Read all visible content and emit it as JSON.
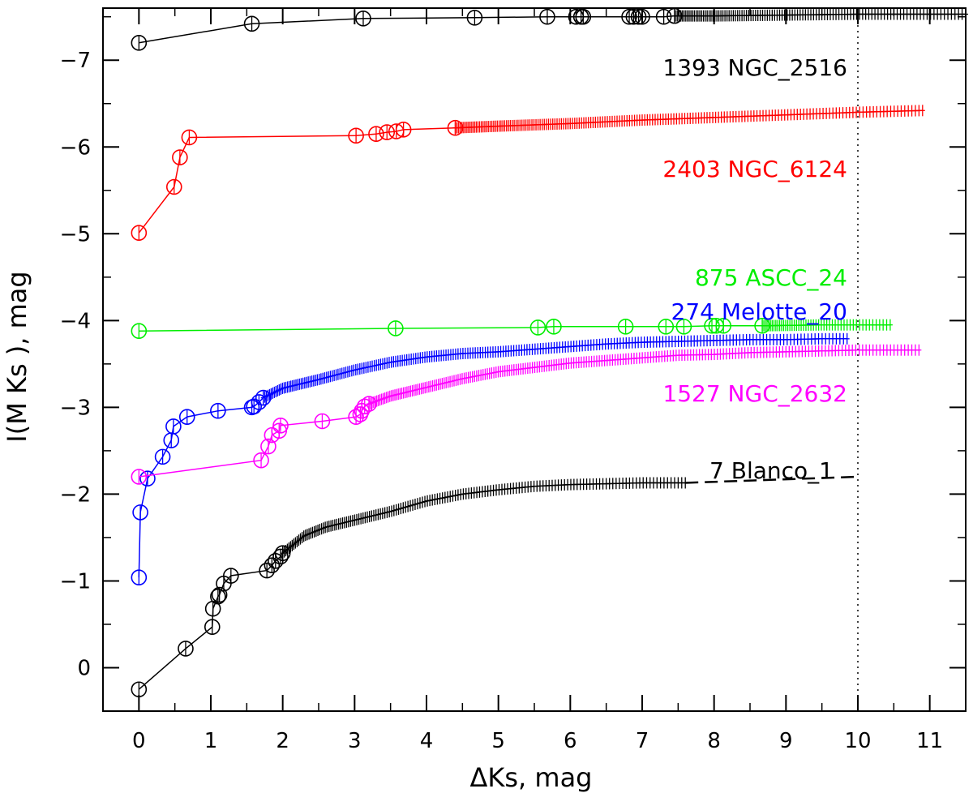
{
  "chart_data": {
    "type": "line",
    "xlabel": "ΔKs, mag",
    "ylabel": "I(M Ks ), mag",
    "xlim": [
      -0.5,
      11.5
    ],
    "ylim": [
      0.5,
      -7.6
    ],
    "y_axis_inverted": true,
    "grid": false,
    "xticks": [
      0,
      1,
      2,
      3,
      4,
      5,
      6,
      7,
      8,
      9,
      10,
      11
    ],
    "yticks": [
      0,
      -1,
      -2,
      -3,
      -4,
      -5,
      -6,
      -7
    ],
    "reference_line": {
      "x": 10,
      "style": "dotted"
    },
    "series": [
      {
        "name": "1393 NGC_2516",
        "color": "#000000",
        "circle_x": [
          0,
          1.57,
          3.12,
          4.67,
          5.68,
          6.08,
          6.15,
          6.18,
          6.82,
          6.88,
          6.95,
          7.0,
          7.3,
          7.45
        ],
        "circle_y": [
          -7.2,
          -7.42,
          -7.48,
          -7.49,
          -7.5,
          -7.5,
          -7.5,
          -7.5,
          -7.5,
          -7.5,
          -7.5,
          -7.5,
          -7.5,
          -7.51
        ],
        "tail_x": [
          7.45,
          8.0,
          9.0,
          10.0,
          11.5
        ],
        "tail_y": [
          -7.51,
          -7.51,
          -7.52,
          -7.53,
          -7.53
        ]
      },
      {
        "name": "2403 NGC_6124",
        "color": "#ff0000",
        "circle_x": [
          0,
          0.49,
          0.57,
          0.7,
          3.02,
          3.3,
          3.45,
          3.58,
          3.68,
          4.4
        ],
        "circle_y": [
          -5.01,
          -5.54,
          -5.88,
          -6.11,
          -6.13,
          -6.15,
          -6.17,
          -6.18,
          -6.2,
          -6.22
        ],
        "tail_x": [
          4.4,
          5.0,
          6.0,
          7.0,
          8.0,
          9.0,
          10.0,
          10.9
        ],
        "tail_y": [
          -6.22,
          -6.24,
          -6.27,
          -6.31,
          -6.34,
          -6.37,
          -6.4,
          -6.42
        ]
      },
      {
        "name": "875 ASCC_24",
        "color": "#00ee00",
        "circle_x": [
          0,
          3.57,
          5.55,
          5.77,
          6.77,
          7.33,
          7.58,
          7.97,
          8.03,
          8.13,
          8.67
        ],
        "circle_y": [
          -3.88,
          -3.91,
          -3.92,
          -3.93,
          -3.93,
          -3.93,
          -3.93,
          -3.94,
          -3.94,
          -3.94,
          -3.94
        ],
        "tail_x": [
          8.67,
          9.5,
          10.45
        ],
        "tail_y": [
          -3.94,
          -3.95,
          -3.95
        ]
      },
      {
        "name": "274 Melotte_20",
        "color": "#0000ff",
        "circle_x": [
          0,
          0.02,
          0.12,
          0.33,
          0.45,
          0.48,
          0.67,
          1.1,
          1.57,
          1.6,
          1.67,
          1.73
        ],
        "circle_y": [
          -1.04,
          -1.79,
          -2.18,
          -2.43,
          -2.62,
          -2.78,
          -2.89,
          -2.96,
          -3.0,
          -3.01,
          -3.06,
          -3.11
        ],
        "tail_x": [
          1.73,
          2.0,
          2.5,
          3.0,
          3.5,
          4.0,
          4.5,
          5.0,
          5.5,
          6.0,
          6.5,
          7.0,
          7.5,
          8.0,
          8.5,
          9.0,
          9.5,
          9.85
        ],
        "tail_y": [
          -3.11,
          -3.22,
          -3.32,
          -3.43,
          -3.52,
          -3.58,
          -3.62,
          -3.64,
          -3.67,
          -3.7,
          -3.73,
          -3.75,
          -3.76,
          -3.77,
          -3.78,
          -3.78,
          -3.79,
          -3.79
        ]
      },
      {
        "name": "1527 NGC_2632",
        "color": "#ff00ff",
        "circle_x": [
          0,
          1.7,
          1.8,
          1.85,
          1.95,
          1.97,
          2.55,
          3.02,
          3.08,
          3.1,
          3.14,
          3.2
        ],
        "circle_y": [
          -2.2,
          -2.39,
          -2.55,
          -2.68,
          -2.73,
          -2.79,
          -2.84,
          -2.89,
          -2.92,
          -2.96,
          -3.01,
          -3.04
        ],
        "tail_x": [
          3.2,
          3.5,
          4.0,
          4.5,
          5.0,
          5.5,
          6.0,
          6.5,
          7.0,
          7.5,
          8.0,
          8.5,
          9.0,
          9.5,
          10.0,
          10.5,
          10.85
        ],
        "tail_y": [
          -3.04,
          -3.13,
          -3.23,
          -3.33,
          -3.41,
          -3.46,
          -3.51,
          -3.54,
          -3.57,
          -3.6,
          -3.61,
          -3.63,
          -3.64,
          -3.65,
          -3.66,
          -3.66,
          -3.66
        ]
      },
      {
        "name": "7 Blanco_1",
        "color": "#000000",
        "circle_x": [
          0,
          0.65,
          1.02,
          1.03,
          1.1,
          1.12,
          1.18,
          1.28,
          1.78,
          1.85,
          1.9,
          1.97,
          2.0
        ],
        "circle_y": [
          0.25,
          -0.22,
          -0.47,
          -0.68,
          -0.82,
          -0.84,
          -0.97,
          -1.06,
          -1.12,
          -1.18,
          -1.23,
          -1.28,
          -1.32
        ],
        "tail_x": [
          2.0,
          2.3,
          2.6,
          3.0,
          3.5,
          4.0,
          4.5,
          5.0,
          5.5,
          6.0,
          6.5,
          7.0,
          7.6
        ],
        "tail_y": [
          -1.32,
          -1.52,
          -1.62,
          -1.7,
          -1.8,
          -1.92,
          -2.0,
          -2.05,
          -2.09,
          -2.11,
          -2.12,
          -2.13,
          -2.13
        ],
        "dashed_x": [
          7.6,
          10.0
        ],
        "dashed_y": [
          -2.13,
          -2.2
        ]
      }
    ]
  }
}
